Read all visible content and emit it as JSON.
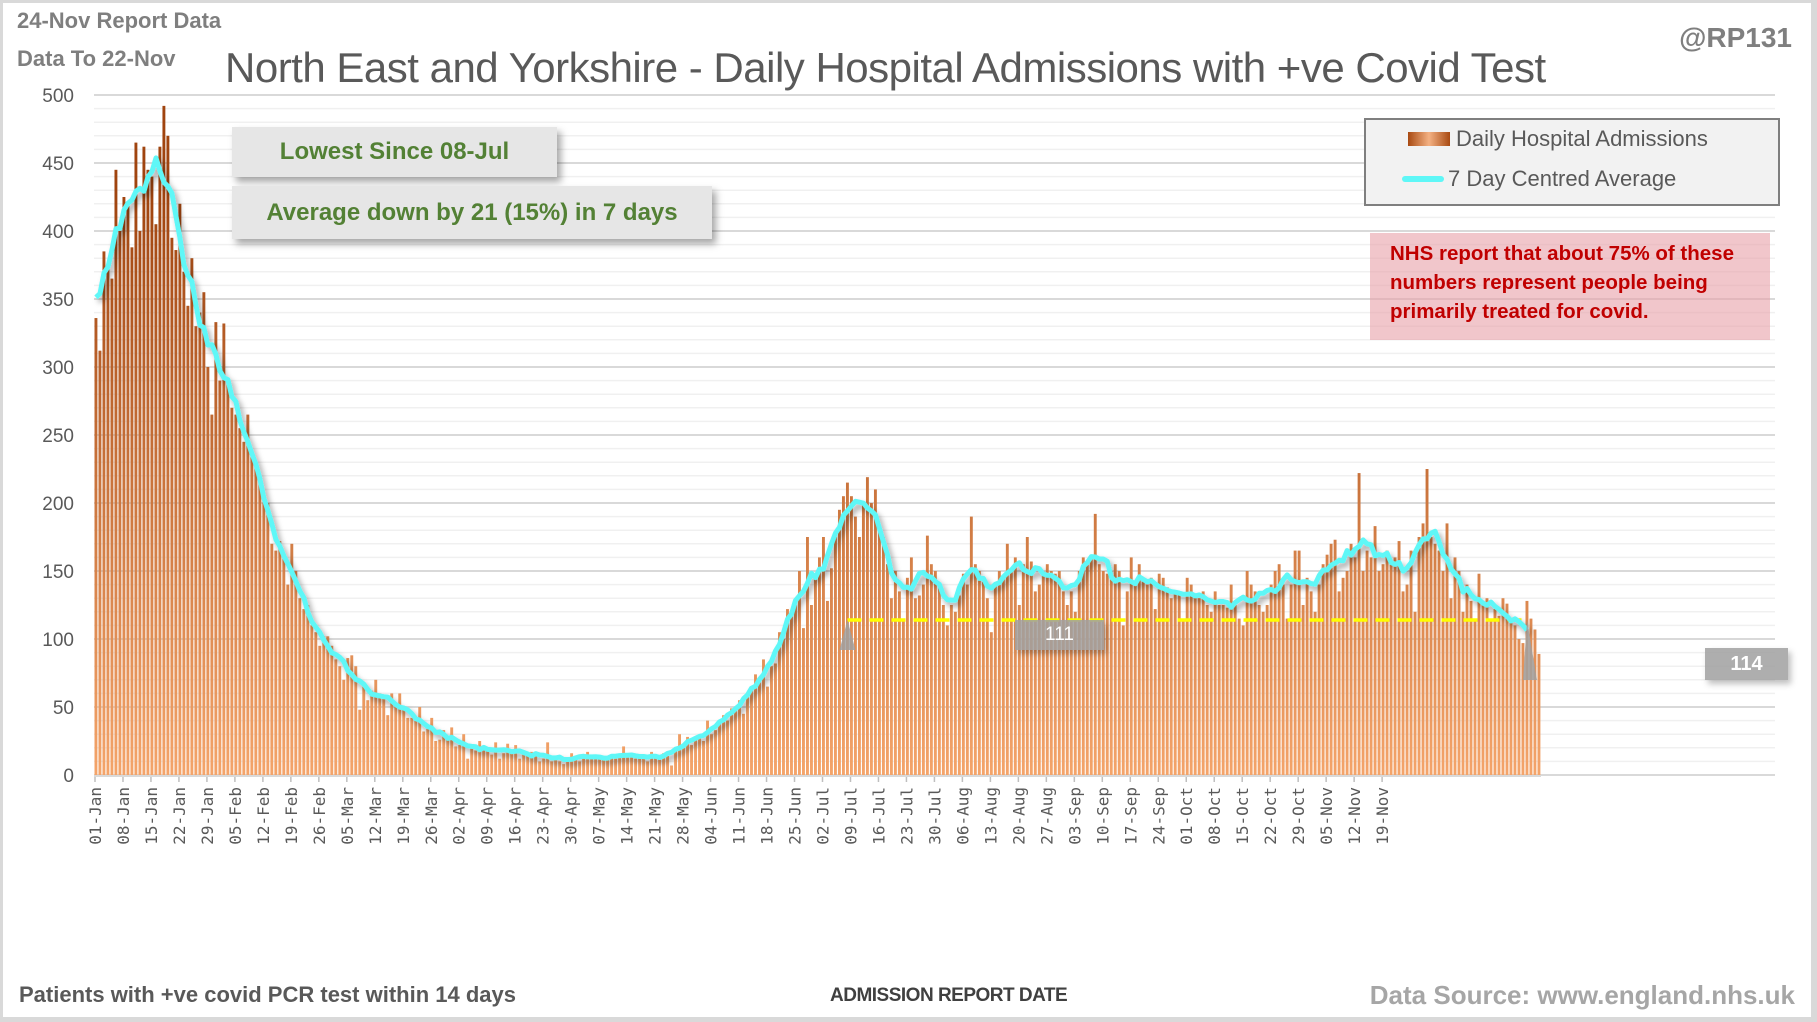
{
  "header": {
    "report_note": "24-Nov Report Data",
    "data_note": "Data To 22-Nov",
    "title": "North East and Yorkshire - Daily Hospital Admissions with +ve Covid Test",
    "handle": "@RP131"
  },
  "callouts": {
    "lowest": "Lowest Since 08-Jul",
    "average_change": "Average down by 21 (15%) in 7 days"
  },
  "legend": {
    "bars": "Daily Hospital Admissions",
    "line": "7 Day Centred Average"
  },
  "nhs_note": {
    "line1": "NHS report that about 75% of these",
    "line2": "numbers represent people being",
    "line3": "primarily treated for covid."
  },
  "flags": {
    "left_value": "111",
    "right_value": "114"
  },
  "footer": {
    "left": "Patients with +ve covid PCR test within 14 days",
    "xlabel": "ADMISSION REPORT DATE",
    "source": "Data Source: www.england.nhs.uk"
  },
  "colors": {
    "bar_dark": "#a0440f",
    "bar_light": "#f4a46a",
    "avg_line": "#5ff7f7",
    "reference_line": "#ffff00",
    "callout_text": "#538135",
    "nhs_text": "#c00000"
  },
  "chart_data": {
    "type": "bar",
    "title": "North East and Yorkshire - Daily Hospital Admissions with +ve Covid Test",
    "xlabel": "ADMISSION REPORT DATE",
    "ylabel": "",
    "ylim": [
      0,
      500
    ],
    "yticks": [
      0,
      50,
      100,
      150,
      200,
      250,
      300,
      350,
      400,
      450,
      500
    ],
    "grid": true,
    "legend_position": "top-right",
    "start_date": "01-Jan",
    "end_date": "22-Nov",
    "xtick_labels": [
      "01-Jan",
      "08-Jan",
      "15-Jan",
      "22-Jan",
      "29-Jan",
      "05-Feb",
      "12-Feb",
      "19-Feb",
      "26-Feb",
      "05-Mar",
      "12-Mar",
      "19-Mar",
      "26-Mar",
      "02-Apr",
      "09-Apr",
      "16-Apr",
      "23-Apr",
      "30-Apr",
      "07-May",
      "14-May",
      "21-May",
      "28-May",
      "04-Jun",
      "11-Jun",
      "18-Jun",
      "25-Jun",
      "02-Jul",
      "09-Jul",
      "16-Jul",
      "23-Jul",
      "30-Jul",
      "06-Aug",
      "13-Aug",
      "20-Aug",
      "27-Aug",
      "03-Sep",
      "10-Sep",
      "17-Sep",
      "24-Sep",
      "01-Oct",
      "08-Oct",
      "15-Oct",
      "22-Oct",
      "29-Oct",
      "05-Nov",
      "12-Nov",
      "19-Nov"
    ],
    "reference_line": {
      "value": 114,
      "label_start": "111",
      "label_end": "114",
      "from": "08-Jul",
      "to": "19-Nov"
    },
    "series": [
      {
        "name": "Daily Hospital Admissions",
        "type": "bar",
        "values": [
          336,
          312,
          385,
          372,
          365,
          445,
          400,
          425,
          420,
          388,
          465,
          400,
          462,
          445,
          440,
          405,
          462,
          492,
          470,
          395,
          386,
          420,
          370,
          345,
          380,
          330,
          340,
          355,
          300,
          265,
          333,
          290,
          332,
          290,
          270,
          265,
          255,
          245,
          265,
          235,
          230,
          220,
          205,
          200,
          170,
          165,
          172,
          160,
          140,
          170,
          150,
          130,
          122,
          125,
          110,
          105,
          95,
          102,
          102,
          95,
          85,
          80,
          70,
          86,
          88,
          80,
          48,
          65,
          55,
          62,
          70,
          60,
          56,
          44,
          60,
          51,
          60,
          50,
          42,
          42,
          40,
          50,
          32,
          34,
          42,
          25,
          26,
          33,
          27,
          35,
          21,
          22,
          30,
          12,
          22,
          18,
          25,
          18,
          20,
          15,
          24,
          12,
          16,
          23,
          18,
          22,
          12,
          17,
          15,
          17,
          15,
          10,
          12,
          24,
          10,
          14,
          10,
          8,
          10,
          16,
          12,
          10,
          15,
          17,
          14,
          12,
          13,
          12,
          11,
          13,
          12,
          14,
          21,
          14,
          15,
          12,
          14,
          13,
          10,
          17,
          14,
          12,
          16,
          14,
          7,
          18,
          30,
          20,
          28,
          22,
          26,
          28,
          25,
          40,
          30,
          33,
          38,
          44,
          40,
          49,
          50,
          55,
          45,
          58,
          62,
          74,
          68,
          85,
          65,
          80,
          82,
          105,
          100,
          122,
          118,
          125,
          150,
          108,
          175,
          125,
          145,
          160,
          175,
          128,
          152,
          175,
          195,
          205,
          215,
          205,
          190,
          175,
          200,
          219,
          200,
          210,
          180,
          175,
          155,
          130,
          150,
          135,
          115,
          145,
          160,
          130,
          132,
          140,
          176,
          155,
          150,
          140,
          125,
          110,
          125,
          120,
          132,
          148,
          140,
          190,
          155,
          150,
          142,
          130,
          105,
          140,
          150,
          145,
          170,
          150,
          160,
          125,
          155,
          175,
          157,
          135,
          140,
          150,
          155,
          150,
          148,
          150,
          135,
          125,
          135,
          120,
          150,
          160,
          155,
          162,
          192,
          155,
          150,
          148,
          150,
          155,
          150,
          110,
          135,
          160,
          140,
          155,
          145,
          140,
          145,
          122,
          148,
          145,
          138,
          130,
          133,
          135,
          115,
          145,
          140,
          132,
          130,
          135,
          125,
          120,
          135,
          125,
          125,
          123,
          140,
          125,
          115,
          110,
          150,
          140,
          135,
          125,
          120,
          125,
          140,
          150,
          155,
          140,
          115,
          140,
          165,
          165,
          125,
          145,
          135,
          120,
          140,
          155,
          162,
          170,
          173,
          135,
          145,
          150,
          170,
          160,
          222,
          150,
          165,
          160,
          183,
          150,
          155,
          165,
          157,
          160,
          172,
          135,
          140,
          165,
          120,
          175,
          185,
          225,
          175,
          170,
          165,
          150,
          185,
          130,
          160,
          150,
          120,
          140,
          128,
          114,
          148,
          128,
          130,
          115,
          122,
          117,
          130,
          126,
          113,
          110,
          100,
          97,
          128,
          115,
          107,
          89
        ]
      },
      {
        "name": "7 Day Centred Average",
        "type": "line",
        "values": "computed 7-day centred mean of daily admissions"
      }
    ]
  }
}
